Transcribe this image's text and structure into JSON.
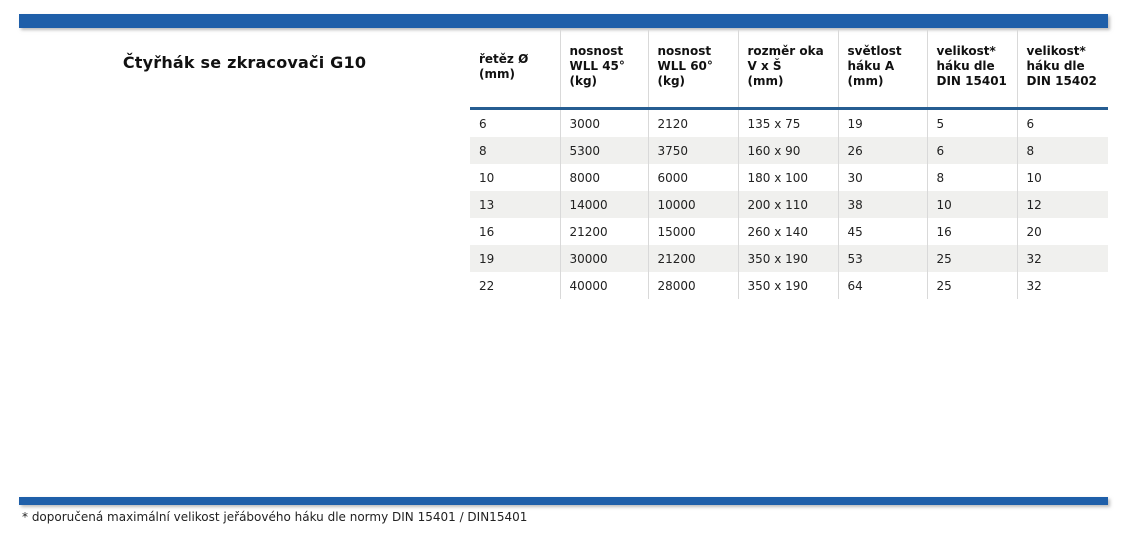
{
  "page": {
    "title": "Čtyřhák se zkracovači G10",
    "footnote": "* doporučená maximální velikost jeřábového háku dle normy DIN 15401 / DIN15401"
  },
  "colors": {
    "accent_bar": "#1F5FA9",
    "header_rule": "#265D92",
    "row_alternate": "#F0F0EE",
    "column_divider": "#D9D9D9"
  },
  "chart_data": {
    "type": "table",
    "headers": [
      "řetěz Ø\n(mm)",
      "nosnost\nWLL 45°\n(kg)",
      "nosnost\nWLL 60°\n(kg)",
      "rozměr oka\nV x Š\n(mm)",
      "světlost\nháku A\n(mm)",
      "velikost*\nháku dle\nDIN 15401",
      "velikost*\nháku dle\nDIN 15402"
    ],
    "rows": [
      [
        "6",
        "3000",
        "2120",
        "135 x 75",
        "19",
        "5",
        "6"
      ],
      [
        "8",
        "5300",
        "3750",
        "160 x 90",
        "26",
        "6",
        "8"
      ],
      [
        "10",
        "8000",
        "6000",
        "180 x 100",
        "30",
        "8",
        "10"
      ],
      [
        "13",
        "14000",
        "10000",
        "200 x 110",
        "38",
        "10",
        "12"
      ],
      [
        "16",
        "21200",
        "15000",
        "260 x 140",
        "45",
        "16",
        "20"
      ],
      [
        "19",
        "30000",
        "21200",
        "350 x 190",
        "53",
        "25",
        "32"
      ],
      [
        "22",
        "40000",
        "28000",
        "350 x 190",
        "64",
        "25",
        "32"
      ]
    ]
  }
}
